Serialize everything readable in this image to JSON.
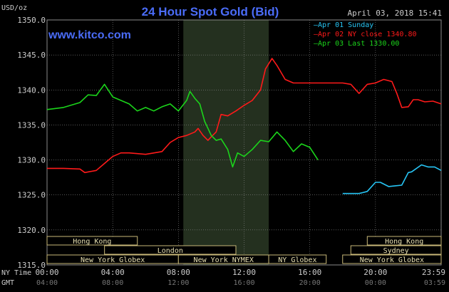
{
  "header": {
    "y_unit": "USD/oz",
    "title": "24 Hour Spot Gold (Bid)",
    "timestamp": "April 03, 2018 15:41",
    "website": "www.kitco.com"
  },
  "colors": {
    "background": "#000000",
    "title": "#4a6cf7",
    "grid": "#8a8a8a",
    "text": "#cccccc",
    "band_label": "#e8e0b0",
    "band_border": "#c8b878",
    "nymex_shade": "#24301f",
    "sunday": "#27c5f5",
    "ny_close": "#ff1a1a",
    "last": "#1bd51b"
  },
  "chart_data": {
    "type": "line",
    "ylim": [
      1315,
      1350
    ],
    "y_ticks": [
      "1350.0",
      "1345.0",
      "1340.0",
      "1335.0",
      "1330.0",
      "1325.0",
      "1320.0",
      "1315.0"
    ],
    "xlim": [
      0,
      24
    ],
    "x_axis_row1_label": "NY Time",
    "x_axis_row2_label": "GMT",
    "x_ticks_ny": [
      "00:00",
      "04:00",
      "08:00",
      "12:00",
      "16:00",
      "20:00",
      "23:59"
    ],
    "x_ticks_gmt": [
      "04:00",
      "08:00",
      "12:00",
      "16:00",
      "20:00",
      "00:00",
      "03:59"
    ],
    "x_tick_positions": [
      0,
      4,
      8,
      12,
      16,
      20,
      24
    ],
    "nymex_session": [
      8.3,
      13.5
    ],
    "legend": [
      {
        "label": "Apr 01 Sunday",
        "color": "#27c5f5"
      },
      {
        "label": "Apr 02 NY close 1340.80",
        "color": "#ff1a1a"
      },
      {
        "label": "Apr 03 Last 1330.00",
        "color": "#1bd51b"
      }
    ],
    "series": [
      {
        "name": "Apr 02 NY close 1340.80",
        "color": "#ff1a1a",
        "x": [
          0,
          1,
          2,
          2.3,
          3,
          3.5,
          4,
          4.5,
          5,
          6,
          7,
          7.5,
          8,
          8.5,
          9,
          9.2,
          9.5,
          9.8,
          10,
          10.3,
          10.6,
          11,
          11.5,
          12,
          12.5,
          13,
          13.3,
          13.7,
          14,
          14.5,
          15,
          15.5,
          16,
          16.5,
          17,
          17.5,
          18,
          18.5,
          19,
          19.5,
          20,
          20.5,
          21,
          21.3,
          21.6,
          22,
          22.3,
          22.6,
          23,
          23.5,
          24
        ],
        "y": [
          1328.8,
          1328.8,
          1328.7,
          1328.2,
          1328.5,
          1329.5,
          1330.5,
          1331.0,
          1331.0,
          1330.8,
          1331.2,
          1332.5,
          1333.2,
          1333.5,
          1334.0,
          1334.5,
          1333.5,
          1332.8,
          1333.3,
          1334.0,
          1336.5,
          1336.3,
          1337.0,
          1337.8,
          1338.5,
          1340.0,
          1343.0,
          1344.5,
          1343.5,
          1341.5,
          1341.0,
          1341.0,
          1341.0,
          1341.0,
          1341.0,
          1341.0,
          1341.0,
          1340.8,
          1339.5,
          1340.8,
          1341.0,
          1341.5,
          1341.2,
          1339.5,
          1337.5,
          1337.6,
          1338.6,
          1338.6,
          1338.3,
          1338.4,
          1338.0
        ]
      },
      {
        "name": "Apr 03 Last 1330.00",
        "color": "#1bd51b",
        "x": [
          0,
          1,
          2,
          2.5,
          3,
          3.5,
          4,
          4.5,
          5,
          5.5,
          6,
          6.5,
          7,
          7.5,
          8,
          8.5,
          8.7,
          9,
          9.3,
          9.6,
          9.8,
          10,
          10.3,
          10.6,
          11,
          11.3,
          11.6,
          12,
          12.5,
          13,
          13.5,
          14,
          14.5,
          15,
          15.5,
          16,
          16.5
        ],
        "y": [
          1337.2,
          1337.5,
          1338.2,
          1339.3,
          1339.2,
          1340.8,
          1339.0,
          1338.5,
          1338.0,
          1337.0,
          1337.5,
          1337.0,
          1337.6,
          1338.0,
          1337.0,
          1338.5,
          1339.8,
          1338.8,
          1338.0,
          1335.5,
          1334.5,
          1333.5,
          1332.8,
          1333.0,
          1331.5,
          1329.0,
          1331.0,
          1330.5,
          1331.5,
          1332.8,
          1332.6,
          1334.0,
          1332.8,
          1331.2,
          1332.3,
          1331.8,
          1330.0
        ]
      },
      {
        "name": "Apr 01 Sunday",
        "color": "#27c5f5",
        "x": [
          18,
          19,
          19.5,
          20,
          20.3,
          20.8,
          21.2,
          21.6,
          22,
          22.2,
          22.8,
          23.2,
          23.6,
          24
        ],
        "y": [
          1325.2,
          1325.2,
          1325.5,
          1326.8,
          1326.8,
          1326.2,
          1326.3,
          1326.4,
          1328.2,
          1328.3,
          1329.3,
          1329.0,
          1329.0,
          1328.5
        ]
      }
    ],
    "market_sessions": [
      {
        "label": "Hong Kong",
        "start": 0,
        "end": 5.5,
        "row": 0
      },
      {
        "label": "London",
        "start": 3.5,
        "end": 11.5,
        "row": 1
      },
      {
        "label": "New York Globex",
        "start": 0,
        "end": 8.0,
        "row": 2
      },
      {
        "label": "New York NYMEX",
        "start": 8.0,
        "end": 13.5,
        "row": 2
      },
      {
        "label": "NY Globex",
        "start": 13.5,
        "end": 17.0,
        "row": 2
      },
      {
        "label": "Hong Kong",
        "start": 19.5,
        "end": 24,
        "row": 0
      },
      {
        "label": "Sydney",
        "start": 18.5,
        "end": 24,
        "row": 1
      },
      {
        "label": "New York Globex",
        "start": 18.0,
        "end": 24,
        "row": 2
      }
    ]
  }
}
